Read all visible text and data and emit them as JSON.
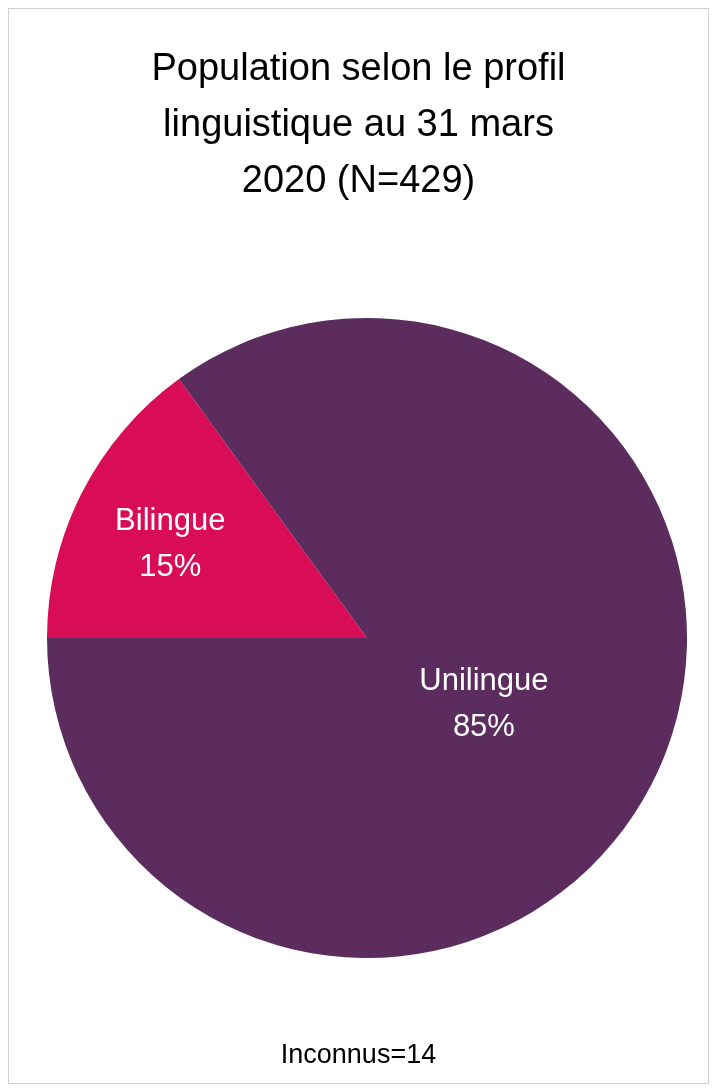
{
  "chart_data": {
    "type": "pie",
    "title": "Population selon le profil linguistique au 31 mars 2020 (N=429)",
    "categories": [
      "Bilingue",
      "Unilingue"
    ],
    "values": [
      15,
      85
    ],
    "colors": [
      "#d80d55",
      "#5c2c5f"
    ],
    "value_labels": [
      "15%",
      "85%"
    ],
    "annotations": [
      "Inconnus=14"
    ]
  }
}
